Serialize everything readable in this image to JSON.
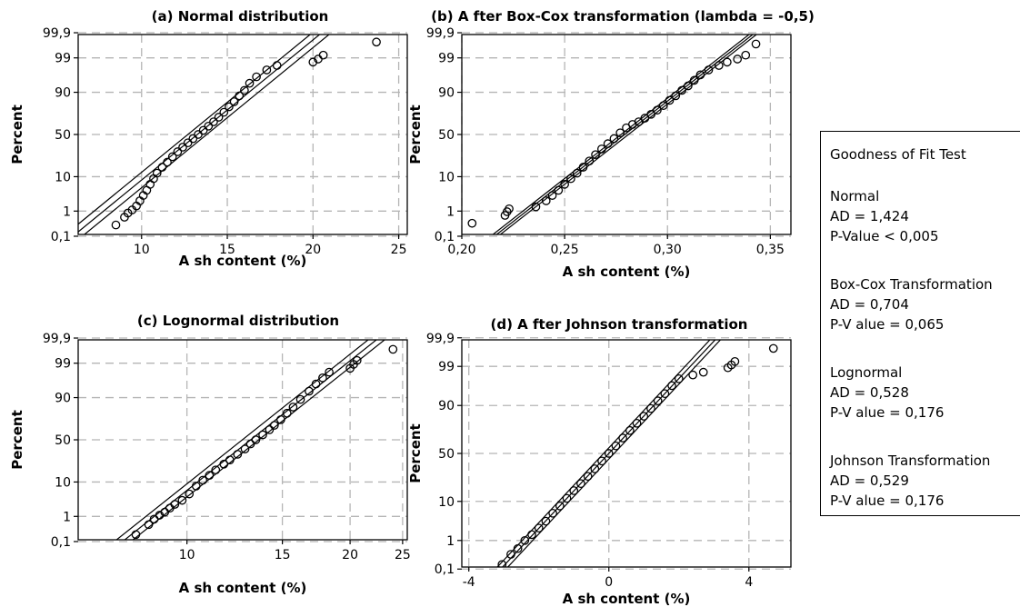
{
  "chart_data": [
    {
      "type": "scatter",
      "title": "(a) Normal distribution",
      "xlabel": "A sh content (%)",
      "ylabel": "Percent",
      "xlim": [
        6.3,
        25.5
      ],
      "xticks": [
        10,
        15,
        20,
        25
      ],
      "xtick_labels": [
        "10",
        "15",
        "20",
        "25"
      ],
      "yticks": [
        0.1,
        1,
        10,
        50,
        90,
        99,
        99.9
      ],
      "ytick_labels": [
        "0,1",
        "1",
        "10",
        "50",
        "90",
        "99",
        "99,9"
      ],
      "yscale": "normal-probability",
      "grid": true,
      "fit": {
        "mu": 13.25,
        "sigma": 2.35,
        "band": 0.55
      },
      "points": [
        [
          8.5,
          0.3
        ],
        [
          9.0,
          0.6
        ],
        [
          9.2,
          0.85
        ],
        [
          9.45,
          1.1
        ],
        [
          9.7,
          1.5
        ],
        [
          9.9,
          2.2
        ],
        [
          10.1,
          3.2
        ],
        [
          10.3,
          4.5
        ],
        [
          10.5,
          6.5
        ],
        [
          10.7,
          9
        ],
        [
          10.9,
          12
        ],
        [
          11.2,
          16
        ],
        [
          11.5,
          20
        ],
        [
          11.8,
          25
        ],
        [
          12.1,
          30
        ],
        [
          12.4,
          35
        ],
        [
          12.7,
          40
        ],
        [
          13.0,
          45
        ],
        [
          13.3,
          50
        ],
        [
          13.6,
          55
        ],
        [
          13.9,
          60
        ],
        [
          14.2,
          65
        ],
        [
          14.5,
          70
        ],
        [
          14.8,
          75
        ],
        [
          15.1,
          80
        ],
        [
          15.4,
          84
        ],
        [
          15.7,
          88
        ],
        [
          16.0,
          91
        ],
        [
          16.3,
          94
        ],
        [
          16.7,
          96
        ],
        [
          17.3,
          97.5
        ],
        [
          17.9,
          98.2
        ],
        [
          20.0,
          98.6
        ],
        [
          20.3,
          98.9
        ],
        [
          20.6,
          99.2
        ],
        [
          23.7,
          99.75
        ]
      ]
    },
    {
      "type": "scatter",
      "title": "(b) A fter Box-Cox transformation (lambda = -0,5)",
      "xlabel": "A sh content (%)",
      "ylabel": "Percent",
      "xlim": [
        0.2,
        0.36
      ],
      "xticks": [
        0.2,
        0.25,
        0.3,
        0.35
      ],
      "xtick_labels": [
        "0,20",
        "0,25",
        "0,30",
        "0,35"
      ],
      "yticks": [
        0.1,
        1,
        10,
        50,
        90,
        99,
        99.9
      ],
      "ytick_labels": [
        "0,1",
        "1",
        "10",
        "50",
        "90",
        "99",
        "99,9"
      ],
      "yscale": "normal-probability",
      "grid": true,
      "fit": {
        "mu": 0.2792,
        "sigma": 0.0205,
        "band": 0.0018
      },
      "points": [
        [
          0.205,
          0.35
        ],
        [
          0.221,
          0.7
        ],
        [
          0.222,
          0.95
        ],
        [
          0.223,
          1.2
        ],
        [
          0.236,
          1.4
        ],
        [
          0.241,
          2.2
        ],
        [
          0.244,
          3.2
        ],
        [
          0.247,
          4.5
        ],
        [
          0.25,
          6.5
        ],
        [
          0.253,
          9
        ],
        [
          0.256,
          12
        ],
        [
          0.259,
          16
        ],
        [
          0.262,
          21
        ],
        [
          0.265,
          27
        ],
        [
          0.268,
          33
        ],
        [
          0.271,
          39
        ],
        [
          0.274,
          45
        ],
        [
          0.277,
          52
        ],
        [
          0.28,
          58
        ],
        [
          0.283,
          62
        ],
        [
          0.286,
          65
        ],
        [
          0.289,
          69
        ],
        [
          0.292,
          73
        ],
        [
          0.295,
          77
        ],
        [
          0.298,
          81
        ],
        [
          0.301,
          85
        ],
        [
          0.304,
          88
        ],
        [
          0.307,
          91
        ],
        [
          0.31,
          93
        ],
        [
          0.313,
          95
        ],
        [
          0.316,
          96.5
        ],
        [
          0.32,
          97.5
        ],
        [
          0.325,
          98.2
        ],
        [
          0.329,
          98.6
        ],
        [
          0.334,
          98.9
        ],
        [
          0.338,
          99.2
        ],
        [
          0.343,
          99.7
        ]
      ]
    },
    {
      "type": "scatter",
      "title": "(c) Lognormal distribution",
      "xlabel": "A sh content (%)",
      "ylabel": "Percent",
      "xlim": [
        6.3,
        25.5
      ],
      "xscale": "log",
      "xticks": [
        10,
        15,
        20,
        25
      ],
      "xtick_labels": [
        "10",
        "15",
        "20",
        "25"
      ],
      "yticks": [
        0.1,
        1,
        10,
        50,
        90,
        99,
        99.9
      ],
      "ytick_labels": [
        "0,1",
        "1",
        "10",
        "50",
        "90",
        "99",
        "99,9"
      ],
      "yscale": "normal-probability",
      "grid": true,
      "fit": {
        "mu": 2.573,
        "sigma": 0.176,
        "band": 0.035
      },
      "points": [
        [
          8.05,
          0.2
        ],
        [
          8.5,
          0.5
        ],
        [
          8.7,
          0.8
        ],
        [
          8.9,
          1.1
        ],
        [
          9.1,
          1.4
        ],
        [
          9.3,
          1.9
        ],
        [
          9.5,
          2.5
        ],
        [
          9.8,
          3.3
        ],
        [
          10.1,
          5
        ],
        [
          10.4,
          8
        ],
        [
          10.7,
          11
        ],
        [
          11.0,
          14
        ],
        [
          11.3,
          18
        ],
        [
          11.7,
          23
        ],
        [
          12.0,
          27
        ],
        [
          12.4,
          33
        ],
        [
          12.8,
          39
        ],
        [
          13.1,
          45
        ],
        [
          13.4,
          50
        ],
        [
          13.8,
          56
        ],
        [
          14.2,
          62
        ],
        [
          14.5,
          67
        ],
        [
          14.9,
          73
        ],
        [
          15.3,
          79
        ],
        [
          15.7,
          84
        ],
        [
          16.2,
          89
        ],
        [
          16.8,
          93
        ],
        [
          17.3,
          95.5
        ],
        [
          17.8,
          97
        ],
        [
          18.3,
          98
        ],
        [
          20.0,
          98.5
        ],
        [
          20.3,
          98.9
        ],
        [
          20.6,
          99.2
        ],
        [
          24.0,
          99.7
        ]
      ]
    },
    {
      "type": "scatter",
      "title": "(d) A fter Johnson transformation",
      "xlabel": "A sh content (%)",
      "ylabel": "Percent",
      "xlim": [
        -4.2,
        5.2
      ],
      "xticks": [
        -4,
        0,
        4
      ],
      "xtick_labels": [
        "-4",
        "0",
        "4"
      ],
      "yticks": [
        0.1,
        1,
        10,
        50,
        90,
        99,
        99.9
      ],
      "ytick_labels": [
        "0,1",
        "1",
        "10",
        "50",
        "90",
        "99",
        "99,9"
      ],
      "yscale": "normal-probability",
      "grid": true,
      "fit": {
        "mu": 0.0,
        "sigma": 1.0,
        "band": 0.15
      },
      "points": [
        [
          -3.05,
          0.15
        ],
        [
          -2.8,
          0.35
        ],
        [
          -2.6,
          0.55
        ],
        [
          -2.4,
          1.0
        ],
        [
          -2.2,
          1.5
        ],
        [
          -2.0,
          2.3
        ],
        [
          -1.8,
          3.5
        ],
        [
          -1.6,
          5.5
        ],
        [
          -1.4,
          8
        ],
        [
          -1.2,
          11.5
        ],
        [
          -1.0,
          16
        ],
        [
          -0.8,
          21
        ],
        [
          -0.6,
          27
        ],
        [
          -0.4,
          34
        ],
        [
          -0.2,
          42
        ],
        [
          0.0,
          50
        ],
        [
          0.2,
          58
        ],
        [
          0.4,
          66
        ],
        [
          0.6,
          73
        ],
        [
          0.8,
          79
        ],
        [
          1.0,
          84
        ],
        [
          1.2,
          88.5
        ],
        [
          1.4,
          92
        ],
        [
          1.6,
          94.5
        ],
        [
          1.8,
          96.5
        ],
        [
          2.0,
          97.7
        ],
        [
          2.4,
          98.2
        ],
        [
          2.7,
          98.5
        ],
        [
          3.4,
          98.9
        ],
        [
          3.5,
          99.1
        ],
        [
          3.6,
          99.3
        ],
        [
          4.7,
          99.75
        ]
      ]
    }
  ],
  "legend": {
    "title": "Goodness of Fit Test",
    "groups": [
      {
        "name": "Normal",
        "ad": "AD = 1,424",
        "p": "P-Value < 0,005"
      },
      {
        "name": "Box-Cox Transformation",
        "ad": "AD = 0,704",
        "p": "P-V alue = 0,065"
      },
      {
        "name": "Lognormal",
        "ad": "AD = 0,528",
        "p": "P-V alue = 0,176"
      },
      {
        "name": "Johnson Transformation",
        "ad": "AD = 0,529",
        "p": "P-V alue = 0,176"
      }
    ]
  }
}
